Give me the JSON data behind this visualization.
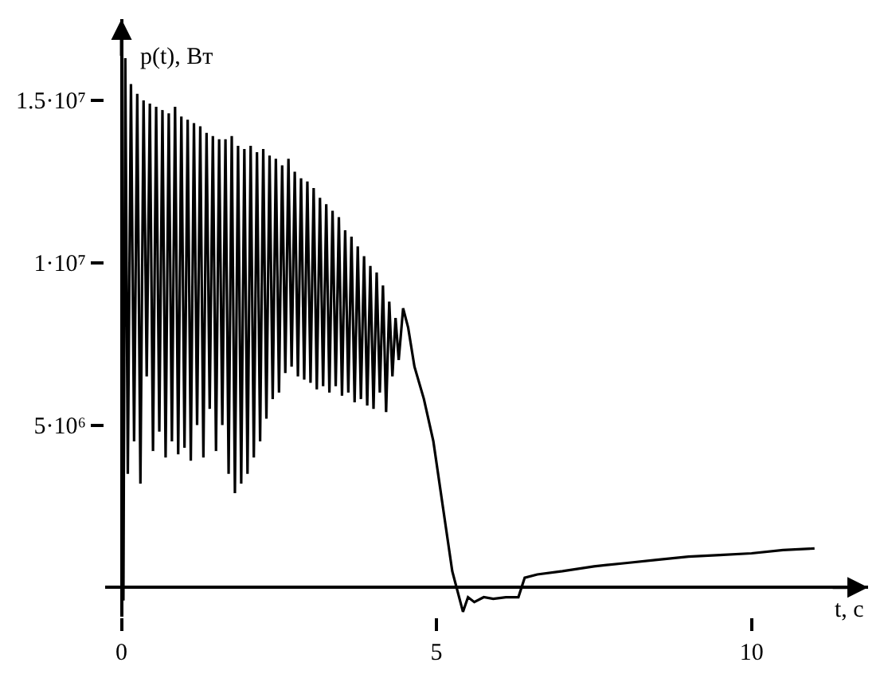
{
  "chart_data": {
    "type": "line",
    "xlabel": "t, c",
    "ylabel": "p(t), Вт",
    "xlim": [
      -0.26,
      11.85
    ],
    "ylim": [
      -900000,
      17500000
    ],
    "xticks": [
      0,
      5,
      10
    ],
    "yticks": [
      {
        "value": 5000000,
        "label": "5·10⁶"
      },
      {
        "value": 10000000,
        "label": "1·10⁷"
      },
      {
        "value": 15000000,
        "label": "1.5·10⁷"
      }
    ],
    "marker": "none",
    "line_style": "solid",
    "series": [
      {
        "color": "#000000",
        "x": [
          0,
          0.03,
          0.06,
          0.1,
          0.15,
          0.2,
          0.25,
          0.3,
          0.35,
          0.4,
          0.45,
          0.5,
          0.55,
          0.6,
          0.65,
          0.7,
          0.75,
          0.8,
          0.85,
          0.9,
          0.95,
          1.0,
          1.05,
          1.1,
          1.15,
          1.2,
          1.25,
          1.3,
          1.35,
          1.4,
          1.45,
          1.5,
          1.55,
          1.6,
          1.65,
          1.7,
          1.75,
          1.8,
          1.85,
          1.9,
          1.95,
          2.0,
          2.05,
          2.1,
          2.15,
          2.2,
          2.25,
          2.3,
          2.35,
          2.4,
          2.45,
          2.5,
          2.55,
          2.6,
          2.65,
          2.7,
          2.75,
          2.8,
          2.85,
          2.9,
          2.95,
          3.0,
          3.05,
          3.1,
          3.15,
          3.2,
          3.25,
          3.3,
          3.35,
          3.4,
          3.45,
          3.5,
          3.55,
          3.6,
          3.65,
          3.7,
          3.75,
          3.8,
          3.85,
          3.9,
          3.95,
          4.0,
          4.05,
          4.1,
          4.15,
          4.2,
          4.25,
          4.3,
          4.35,
          4.4,
          4.47,
          4.55,
          4.65,
          4.8,
          4.95,
          5.1,
          5.25,
          5.42,
          5.5,
          5.6,
          5.75,
          5.9,
          6.1,
          6.3,
          6.4,
          6.6,
          7.0,
          7.5,
          8.0,
          8.5,
          9.0,
          9.5,
          10.0,
          10.5,
          11.0
        ],
        "values": [
          0,
          -400000,
          16300000,
          3500000,
          15500000,
          4500000,
          15200000,
          3200000,
          15000000,
          6500000,
          14900000,
          4200000,
          14800000,
          4800000,
          14700000,
          4000000,
          14600000,
          4500000,
          14800000,
          4100000,
          14500000,
          4300000,
          14400000,
          3900000,
          14300000,
          5000000,
          14200000,
          4000000,
          14000000,
          5500000,
          13900000,
          4200000,
          13800000,
          5000000,
          13800000,
          3500000,
          13900000,
          2900000,
          13600000,
          3200000,
          13500000,
          3500000,
          13600000,
          4000000,
          13400000,
          4500000,
          13500000,
          5200000,
          13300000,
          5800000,
          13200000,
          6000000,
          13000000,
          6600000,
          13200000,
          6800000,
          12800000,
          6500000,
          12600000,
          6400000,
          12500000,
          6300000,
          12300000,
          6100000,
          12000000,
          6200000,
          11800000,
          6000000,
          11600000,
          6200000,
          11400000,
          5900000,
          11000000,
          6000000,
          10800000,
          5700000,
          10500000,
          5800000,
          10200000,
          5600000,
          9900000,
          5500000,
          9700000,
          6000000,
          9300000,
          5400000,
          8800000,
          6500000,
          8300000,
          7000000,
          8600000,
          8000000,
          6800000,
          5800000,
          4500000,
          2500000,
          500000,
          -750000,
          -300000,
          -450000,
          -300000,
          -350000,
          -300000,
          -300000,
          300000,
          400000,
          500000,
          650000,
          750000,
          850000,
          950000,
          1000000,
          1050000,
          1150000,
          1200000
        ]
      }
    ]
  }
}
